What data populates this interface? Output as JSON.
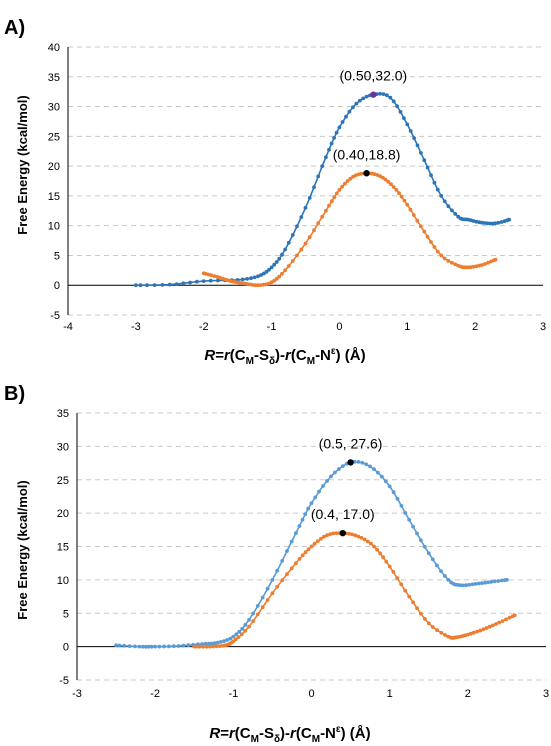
{
  "chart_data": [
    {
      "panel_label": "A)",
      "type": "line",
      "ylabel": "Free Energy (kcal/mol)",
      "xlabel": {
        "parts": [
          {
            "t": "R",
            "italic": true
          },
          {
            "t": "="
          },
          {
            "t": "r",
            "italic": true
          },
          {
            "t": "(C"
          },
          {
            "t": "M",
            "sub": true
          },
          {
            "t": "-S"
          },
          {
            "t": "δ",
            "sub": true
          },
          {
            "t": ")-"
          },
          {
            "t": "r",
            "italic": true
          },
          {
            "t": "(C"
          },
          {
            "t": "M",
            "sub": true
          },
          {
            "t": "-N"
          },
          {
            "t": "ε",
            "sup": true
          },
          {
            "t": ") (Å)"
          }
        ]
      },
      "xlim": [
        -4,
        3
      ],
      "ylim": [
        -5,
        40
      ],
      "xticks": [
        "-4",
        "-3",
        "-2",
        "-1",
        "0",
        "1",
        "2",
        "3"
      ],
      "yticks": [
        "-5",
        "0",
        "5",
        "10",
        "15",
        "20",
        "25",
        "30",
        "35",
        "40"
      ],
      "grid": true,
      "series": [
        {
          "color": "#2e75b6",
          "markers": [
            -3.0,
            2.5
          ],
          "x": [
            -3.0,
            -2.5,
            -2.0,
            -1.5,
            -1.2,
            -1.0,
            -0.8,
            -0.5,
            -0.2,
            0.0,
            0.25,
            0.5,
            0.75,
            1.0,
            1.25,
            1.5,
            1.75,
            1.9,
            2.1,
            2.3,
            2.5
          ],
          "y": [
            0.0,
            0.1,
            0.7,
            0.9,
            1.5,
            3.0,
            6.0,
            13.0,
            21.5,
            26.5,
            30.5,
            32.0,
            31.5,
            27.0,
            21.0,
            15.0,
            11.5,
            11.0,
            10.5,
            10.4,
            11.0
          ]
        },
        {
          "color": "#ed7d31",
          "markers": [
            -2.0,
            2.3
          ],
          "x": [
            -2.0,
            -1.8,
            -1.6,
            -1.4,
            -1.2,
            -1.0,
            -0.8,
            -0.5,
            -0.2,
            0.0,
            0.2,
            0.4,
            0.6,
            0.8,
            1.0,
            1.25,
            1.5,
            1.75,
            1.9,
            2.1,
            2.3
          ],
          "y": [
            2.0,
            1.4,
            0.7,
            0.3,
            0.0,
            0.5,
            2.5,
            7.0,
            12.5,
            16.0,
            18.2,
            18.8,
            18.3,
            16.5,
            13.5,
            9.0,
            5.0,
            3.3,
            3.0,
            3.4,
            4.3
          ]
        }
      ],
      "annotations": [
        {
          "text": "(0.50,32.0)",
          "x": 0.5,
          "y": 32.0,
          "dot": "#7030a0"
        },
        {
          "text": "(0.40,18.8)",
          "x": 0.4,
          "y": 18.8,
          "dot": "#000000"
        }
      ]
    },
    {
      "panel_label": "B)",
      "type": "line",
      "ylabel": "Free Energy (kcal/mol)",
      "xlabel": {
        "parts": [
          {
            "t": "R",
            "italic": true
          },
          {
            "t": "="
          },
          {
            "t": "r",
            "italic": true
          },
          {
            "t": "(C"
          },
          {
            "t": "M",
            "sub": true
          },
          {
            "t": "-S"
          },
          {
            "t": "δ",
            "sub": true
          },
          {
            "t": ")-"
          },
          {
            "t": "r",
            "italic": true
          },
          {
            "t": "(C"
          },
          {
            "t": "M",
            "sub": true
          },
          {
            "t": "-N"
          },
          {
            "t": "ε",
            "sup": true
          },
          {
            "t": ") (Å)"
          }
        ]
      },
      "xlim": [
        -3,
        3
      ],
      "ylim": [
        -5,
        35
      ],
      "xticks": [
        "-3",
        "-2",
        "-1",
        "0",
        "1",
        "2",
        "3"
      ],
      "yticks": [
        "-5",
        "0",
        "5",
        "10",
        "15",
        "20",
        "25",
        "30",
        "35"
      ],
      "grid": true,
      "series": [
        {
          "color": "#5b9bd5",
          "markers": [
            -2.5,
            2.5
          ],
          "x": [
            -2.5,
            -2.2,
            -2.0,
            -1.7,
            -1.4,
            -1.2,
            -1.0,
            -0.8,
            -0.5,
            -0.2,
            0.0,
            0.25,
            0.5,
            0.75,
            1.0,
            1.25,
            1.5,
            1.75,
            1.9,
            2.1,
            2.3,
            2.5
          ],
          "y": [
            0.2,
            0.0,
            0.0,
            0.1,
            0.4,
            0.6,
            1.5,
            4.0,
            10.0,
            17.0,
            21.5,
            25.5,
            27.6,
            27.0,
            24.0,
            19.0,
            14.0,
            10.0,
            9.2,
            9.4,
            9.7,
            10.0
          ]
        },
        {
          "color": "#ed7d31",
          "markers": [
            -1.5,
            2.6
          ],
          "x": [
            -1.5,
            -1.3,
            -1.1,
            -1.0,
            -0.8,
            -0.5,
            -0.2,
            0.0,
            0.2,
            0.4,
            0.6,
            0.8,
            1.0,
            1.25,
            1.5,
            1.75,
            1.85,
            2.0,
            2.2,
            2.4,
            2.6
          ],
          "y": [
            0.0,
            0.0,
            0.2,
            0.8,
            3.0,
            8.0,
            12.5,
            15.0,
            16.7,
            17.0,
            16.5,
            15.0,
            12.0,
            7.5,
            3.5,
            1.5,
            1.4,
            1.8,
            2.6,
            3.6,
            4.7
          ]
        }
      ],
      "annotations": [
        {
          "text": "(0.5, 27.6)",
          "x": 0.5,
          "y": 27.6,
          "dot": "#000000"
        },
        {
          "text": "(0.4, 17.0)",
          "x": 0.4,
          "y": 17.0,
          "dot": "#000000"
        }
      ]
    }
  ]
}
